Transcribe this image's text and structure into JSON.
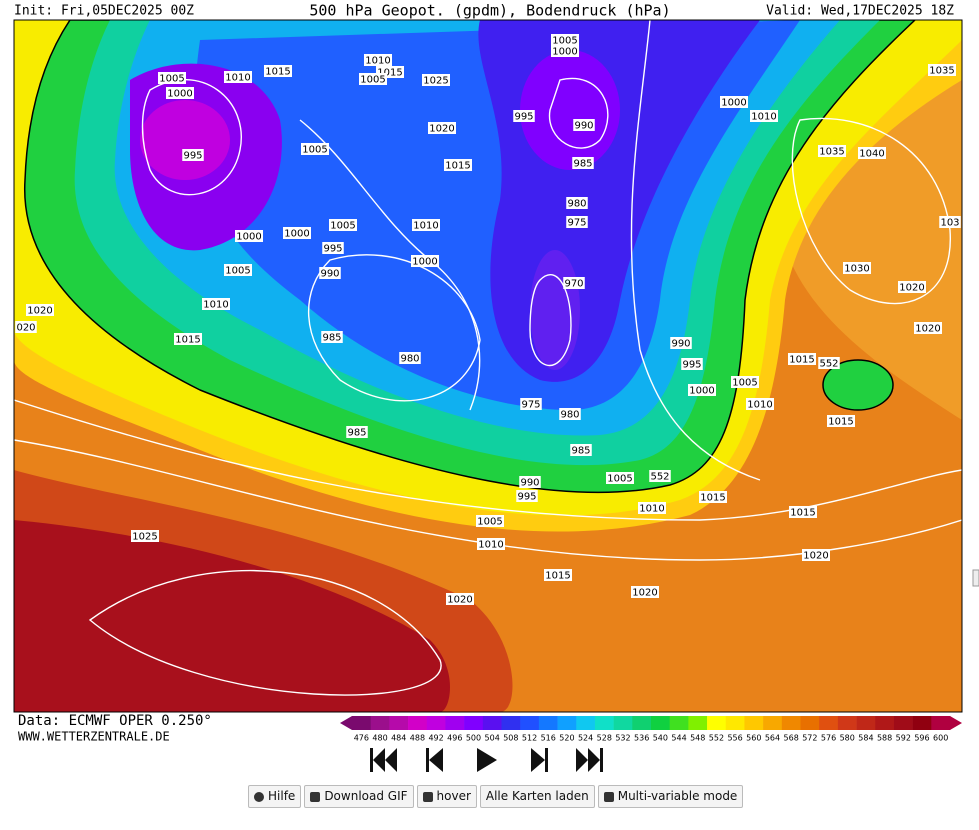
{
  "header": {
    "init": "Init: Fri,05DEC2025 00Z",
    "title": "500 hPa Geopot. (gpdm), Bodendruck (hPa)",
    "valid": "Valid: Wed,17DEC2025 18Z"
  },
  "map": {
    "isobar_labels": [
      "1005",
      "1000",
      "995",
      "1010",
      "1015",
      "1010",
      "1015",
      "1005",
      "1025",
      "1005",
      "1000",
      "1020",
      "995",
      "990",
      "1005",
      "1015",
      "985",
      "1035",
      "1000",
      "1010",
      "1035",
      "1040",
      "980",
      "975",
      "1005",
      "1010",
      "1000",
      "1000",
      "995",
      "1000",
      "990",
      "1005",
      "1030",
      "1010",
      "1020",
      "020",
      "1015",
      "970",
      "1020",
      "1020",
      "985",
      "990",
      "980",
      "995",
      "1015",
      "552",
      "1005",
      "1000",
      "1010",
      "975",
      "980",
      "1015",
      "985",
      "985",
      "1005",
      "552",
      "990",
      "995",
      "1015",
      "1010",
      "1015",
      "1005",
      "1010",
      "1025",
      "1020",
      "1015",
      "1020",
      "1020",
      "103"
    ]
  },
  "footer": {
    "source": "Data: ECMWF OPER 0.250°",
    "site": "WWW.WETTERZENTRALE.DE"
  },
  "colorbar": {
    "ticks": [
      476,
      480,
      484,
      488,
      492,
      496,
      500,
      504,
      508,
      512,
      516,
      520,
      524,
      528,
      532,
      536,
      540,
      544,
      548,
      552,
      556,
      560,
      564,
      568,
      572,
      576,
      580,
      584,
      588,
      592,
      596,
      600
    ],
    "colors": [
      "#7a0a6e",
      "#9b0f8c",
      "#b60aaa",
      "#d200c8",
      "#c000e0",
      "#a000f0",
      "#8000ff",
      "#5a10f0",
      "#3030f0",
      "#2050ff",
      "#1478ff",
      "#10a0ff",
      "#10c8f0",
      "#10e0c8",
      "#10d8a0",
      "#10d070",
      "#10d040",
      "#40e020",
      "#80f000",
      "#ffff00",
      "#ffe800",
      "#ffc800",
      "#f8a800",
      "#f08800",
      "#e87000",
      "#e05010",
      "#d03818",
      "#c02818",
      "#b01818",
      "#a00c18",
      "#900010",
      "#b00040"
    ]
  },
  "controls": {
    "buttons": [
      "Hilfe",
      "Download GIF",
      "hover",
      "Alle Karten laden",
      "Multi-variable mode"
    ]
  }
}
